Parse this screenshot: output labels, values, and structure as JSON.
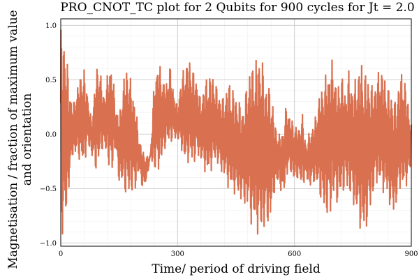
{
  "colors": {
    "series": "#d9704f",
    "grid": "#c9c9c9",
    "minor_grid": "#efefef",
    "frame": "#000000"
  },
  "chart_data": {
    "type": "line",
    "title": "PRO_CNOT_TC plot for 2 Qubits for 900 cycles for Jt = 2.0",
    "xlabel": "Time/ period of driving field",
    "ylabel_lines": [
      "Magnetisation / fraction of maximum value",
      "and orientation"
    ],
    "xlim": [
      0,
      900
    ],
    "ylim": [
      -1.03,
      1.06
    ],
    "xticks": [
      0,
      300,
      600,
      900
    ],
    "xtick_labels": [
      "0",
      "300",
      "600",
      "900"
    ],
    "yticks": [
      -1.0,
      -0.5,
      0.0,
      0.5,
      1.0
    ],
    "ytick_labels": [
      "−1.0",
      "−0.5",
      "0.0",
      "0.5",
      "1.0"
    ],
    "grid": true,
    "legend": "none",
    "series": [
      {
        "envelope_x": [
          0,
          10,
          20,
          30,
          40,
          50,
          60,
          70,
          80,
          90,
          100,
          110,
          120,
          130,
          140,
          150,
          160,
          170,
          180,
          190,
          200,
          210,
          220,
          230,
          240,
          250,
          260,
          270,
          280,
          290,
          300,
          310,
          320,
          330,
          340,
          350,
          360,
          370,
          380,
          390,
          400,
          410,
          420,
          430,
          440,
          450,
          460,
          470,
          480,
          490,
          500,
          510,
          520,
          530,
          540,
          550,
          560,
          570,
          580,
          590,
          600,
          610,
          620,
          630,
          640,
          650,
          660,
          670,
          680,
          690,
          700,
          710,
          720,
          730,
          740,
          750,
          760,
          770,
          780,
          790,
          800,
          810,
          820,
          830,
          840,
          850,
          860,
          870,
          880,
          890,
          900
        ],
        "upper": [
          1.0,
          0.9,
          0.55,
          0.25,
          0.4,
          0.55,
          0.6,
          0.35,
          0.1,
          0.6,
          0.65,
          0.35,
          0.55,
          0.7,
          0.3,
          0.15,
          0.5,
          0.65,
          0.5,
          0.35,
          0.0,
          -0.15,
          -0.2,
          -0.2,
          0.5,
          0.7,
          0.55,
          0.45,
          0.65,
          0.4,
          0.25,
          0.55,
          0.65,
          0.7,
          0.6,
          0.5,
          0.3,
          0.5,
          0.55,
          0.55,
          0.45,
          0.35,
          0.35,
          0.5,
          0.45,
          0.35,
          0.3,
          0.25,
          0.55,
          0.65,
          0.7,
          0.75,
          0.65,
          0.45,
          0.45,
          0.1,
          0.0,
          0.05,
          0.3,
          0.15,
          0.1,
          0.05,
          0.2,
          -0.1,
          0.05,
          0.1,
          0.3,
          0.45,
          0.55,
          0.65,
          0.7,
          0.4,
          0.6,
          0.4,
          0.6,
          0.45,
          0.55,
          0.7,
          0.6,
          0.55,
          0.45,
          0.5,
          0.65,
          0.55,
          0.45,
          0.4,
          0.3,
          0.55,
          0.6,
          0.35,
          0.1
        ],
        "lower": [
          -0.95,
          -0.9,
          -0.55,
          -0.2,
          -0.2,
          -0.25,
          -0.3,
          -0.1,
          -0.2,
          -0.35,
          -0.25,
          -0.1,
          -0.25,
          -0.4,
          -0.15,
          -0.45,
          -0.5,
          -0.6,
          -0.55,
          -0.55,
          -0.35,
          -0.5,
          -0.45,
          -0.2,
          -0.35,
          -0.35,
          -0.25,
          -0.1,
          -0.1,
          -0.05,
          -0.05,
          -0.15,
          -0.3,
          -0.25,
          -0.3,
          -0.2,
          -0.25,
          -0.35,
          -0.4,
          -0.3,
          -0.25,
          -0.35,
          -0.4,
          -0.5,
          -0.55,
          -0.55,
          -0.6,
          -0.65,
          -0.7,
          -0.85,
          -0.9,
          -0.95,
          -0.9,
          -0.85,
          -0.8,
          -0.5,
          -0.45,
          -0.6,
          -0.4,
          -0.35,
          -0.45,
          -0.4,
          -0.5,
          -0.4,
          -0.5,
          -0.45,
          -0.5,
          -0.65,
          -0.75,
          -0.8,
          -0.6,
          -0.65,
          -0.6,
          -0.5,
          -0.55,
          -0.65,
          -0.75,
          -0.9,
          -0.95,
          -0.8,
          -0.6,
          -0.45,
          -0.5,
          -0.55,
          -0.6,
          -0.75,
          -0.7,
          -0.5,
          -0.55,
          -0.45,
          -0.3
        ]
      }
    ]
  }
}
